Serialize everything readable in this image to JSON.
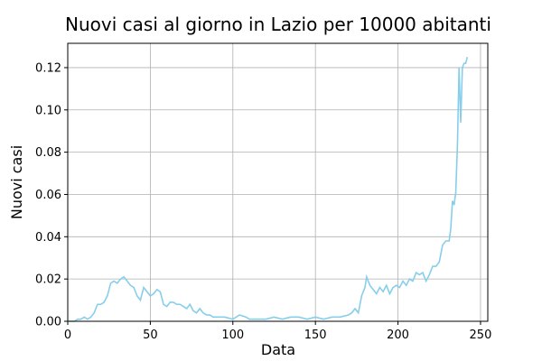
{
  "chart_data": {
    "type": "line",
    "title": "Nuovi casi al giorno in Lazio per 10000 abitanti",
    "xlabel": "Data",
    "ylabel": "Nuovi casi",
    "x": [
      0,
      2,
      4,
      6,
      8,
      10,
      12,
      14,
      16,
      18,
      20,
      22,
      24,
      26,
      28,
      30,
      32,
      34,
      36,
      38,
      40,
      42,
      44,
      46,
      48,
      50,
      52,
      54,
      56,
      58,
      60,
      62,
      64,
      66,
      68,
      70,
      72,
      74,
      76,
      78,
      80,
      82,
      84,
      86,
      88,
      90,
      95,
      100,
      104,
      108,
      110,
      115,
      120,
      125,
      130,
      135,
      140,
      145,
      150,
      155,
      160,
      165,
      170,
      172,
      174,
      176,
      178,
      180,
      181,
      183,
      185,
      187,
      189,
      191,
      193,
      195,
      197,
      199,
      201,
      203,
      205,
      207,
      209,
      211,
      213,
      215,
      217,
      219,
      221,
      223,
      225,
      227,
      229,
      231,
      232,
      233,
      234,
      235,
      236,
      237,
      238,
      239,
      240,
      241,
      242
    ],
    "series": [
      {
        "name": "Nuovi casi",
        "color": "#87ceeb",
        "values": [
          0,
          0,
          0,
          0.001,
          0.001,
          0.002,
          0.001,
          0.002,
          0.004,
          0.008,
          0.008,
          0.009,
          0.012,
          0.018,
          0.019,
          0.018,
          0.02,
          0.021,
          0.019,
          0.017,
          0.016,
          0.012,
          0.01,
          0.016,
          0.014,
          0.012,
          0.013,
          0.015,
          0.014,
          0.008,
          0.007,
          0.009,
          0.009,
          0.008,
          0.008,
          0.007,
          0.006,
          0.008,
          0.005,
          0.004,
          0.006,
          0.004,
          0.003,
          0.003,
          0.002,
          0.002,
          0.002,
          0.001,
          0.003,
          0.002,
          0.001,
          0.001,
          0.001,
          0.002,
          0.001,
          0.002,
          0.002,
          0.001,
          0.002,
          0.001,
          0.002,
          0.002,
          0.003,
          0.004,
          0.006,
          0.004,
          0.012,
          0.016,
          0.021,
          0.017,
          0.015,
          0.013,
          0.016,
          0.014,
          0.017,
          0.013,
          0.016,
          0.017,
          0.016,
          0.019,
          0.017,
          0.02,
          0.019,
          0.023,
          0.022,
          0.023,
          0.019,
          0.022,
          0.026,
          0.026,
          0.028,
          0.036,
          0.038,
          0.038,
          0.044,
          0.057,
          0.055,
          0.061,
          0.083,
          0.12,
          0.094,
          0.12,
          0.122,
          0.122,
          0.125
        ]
      }
    ],
    "xlim": [
      0,
      254.4
    ],
    "xticks": [
      0,
      50,
      100,
      150,
      200,
      250
    ],
    "ylim": [
      0,
      0.1315
    ],
    "yticks": [
      {
        "value": 0,
        "label": "0.00"
      },
      {
        "value": 0.02,
        "label": "0.02"
      },
      {
        "value": 0.04,
        "label": "0.04"
      },
      {
        "value": 0.06,
        "label": "0.06"
      },
      {
        "value": 0.08,
        "label": "0.08"
      },
      {
        "value": 0.1,
        "label": "0.10"
      },
      {
        "value": 0.12,
        "label": "0.12"
      }
    ],
    "grid": true
  }
}
